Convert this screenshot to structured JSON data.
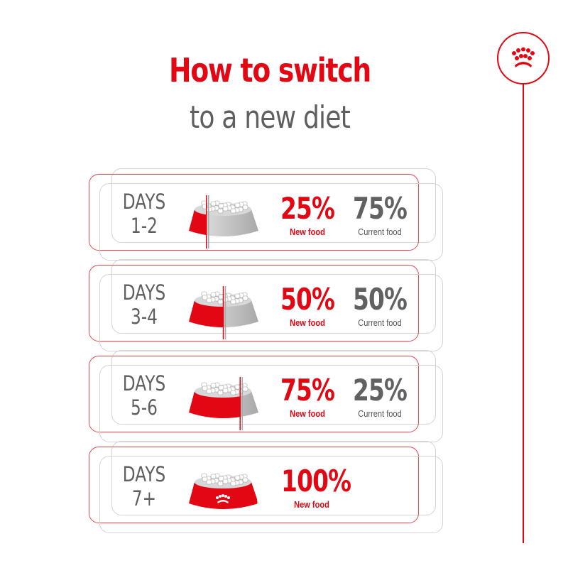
{
  "title": {
    "line1": "How to switch",
    "line2": "to a new diet"
  },
  "colors": {
    "brand_red": "#e30613",
    "gray_text": "#5f5f5f"
  },
  "logo_icon": "royal-canin-crown-icon",
  "steps": [
    {
      "days_label": "DAYS",
      "days_range": "1-2",
      "new_pct": "25%",
      "new_label": "New food",
      "current_pct": "75%",
      "current_label": "Current food",
      "new_fraction": 0.25
    },
    {
      "days_label": "DAYS",
      "days_range": "3-4",
      "new_pct": "50%",
      "new_label": "New food",
      "current_pct": "50%",
      "current_label": "Current food",
      "new_fraction": 0.5
    },
    {
      "days_label": "DAYS",
      "days_range": "5-6",
      "new_pct": "75%",
      "new_label": "New food",
      "current_pct": "25%",
      "current_label": "Current food",
      "new_fraction": 0.75
    },
    {
      "days_label": "DAYS",
      "days_range": "7+",
      "new_pct": "100%",
      "new_label": "New food",
      "new_fraction": 1
    }
  ]
}
